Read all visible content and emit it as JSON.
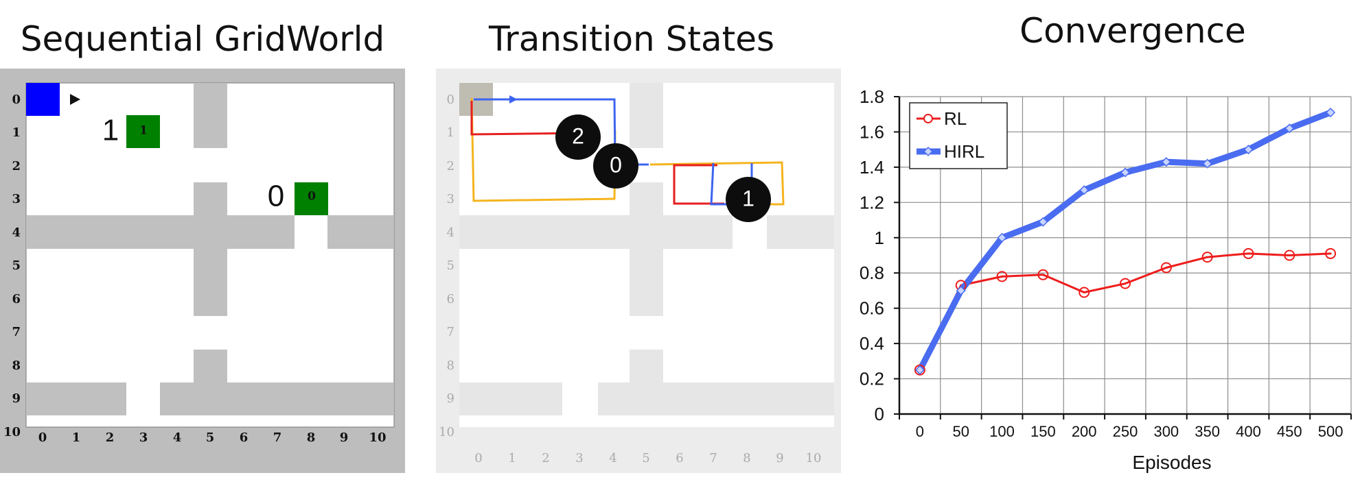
{
  "panels": {
    "grid_title": "Sequential GridWorld",
    "transition_title": "Transition States",
    "chart_title": "Convergence"
  },
  "gridworld": {
    "x_ticks": [
      "0",
      "1",
      "2",
      "3",
      "4",
      "5",
      "6",
      "7",
      "8",
      "9",
      "10"
    ],
    "y_ticks": [
      "0",
      "1",
      "2",
      "3",
      "4",
      "5",
      "6",
      "7",
      "8",
      "9",
      "10"
    ],
    "colors": {
      "frame": "#bdbdbd",
      "wall": "#c0c0c0",
      "agent": "#0000ff",
      "goal": "#008000"
    },
    "agent_cell": [
      0,
      0
    ],
    "goals": [
      {
        "cell": [
          3,
          1
        ],
        "label": "1",
        "side_label": "1"
      },
      {
        "cell": [
          8,
          3
        ],
        "label": "0",
        "side_label": "0"
      }
    ]
  },
  "transition": {
    "markers": [
      "2",
      "0",
      "1"
    ],
    "colors": {
      "red": "#e61e1e",
      "blue": "#3c64f0",
      "yellow": "#f5b41e",
      "wall": "#e6e6e6"
    }
  },
  "chart_data": {
    "type": "line",
    "title": "Convergence",
    "xlabel": "Episodes",
    "ylabel": "",
    "categories": [
      "0",
      "50",
      "100",
      "150",
      "200",
      "250",
      "300",
      "350",
      "400",
      "450",
      "500"
    ],
    "ylim": [
      0,
      1.8
    ],
    "yticks": [
      "0",
      "0.2",
      "0.4",
      "0.6",
      "0.8",
      "1",
      "1.2",
      "1.4",
      "1.6",
      "1.8"
    ],
    "grid": true,
    "legend": "top-left",
    "series": [
      {
        "name": "RL",
        "color": "#ee1c1c",
        "values": [
          0.25,
          0.73,
          0.78,
          0.79,
          0.69,
          0.74,
          0.83,
          0.89,
          0.91,
          0.9,
          0.91
        ]
      },
      {
        "name": "HIRL",
        "color": "#4a6cf0",
        "values": [
          0.25,
          0.7,
          1.0,
          1.09,
          1.27,
          1.37,
          1.43,
          1.42,
          1.5,
          1.62,
          1.71
        ]
      }
    ]
  }
}
